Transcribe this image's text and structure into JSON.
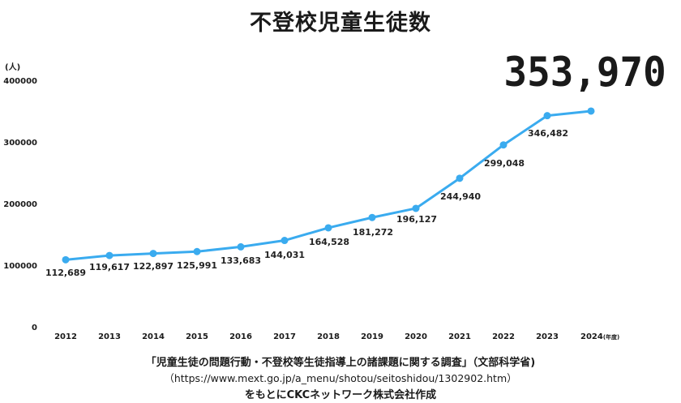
{
  "title": "不登校児童生徒数",
  "headline_value": "353,970",
  "y_unit": "(人)",
  "x_suffix": "(年度)",
  "source": {
    "line1": "「児童生徒の問題行動・不登校等生徒指導上の諸課題に関する調査」（文部科学省)",
    "line2": "（https://www.mext.go.jp/a_menu/shotou/seitoshidou/1302902.htm）",
    "line3": "をもとにCKCネットワーク株式会社作成"
  },
  "colors": {
    "line": "#3aabef"
  },
  "chart_data": {
    "type": "line",
    "title": "不登校児童生徒数",
    "xlabel": "(年度)",
    "ylabel": "(人)",
    "ylim": [
      0,
      400000
    ],
    "yticks": [
      "0",
      "100000",
      "200000",
      "300000",
      "400000"
    ],
    "categories": [
      "2012",
      "2013",
      "2014",
      "2015",
      "2016",
      "2017",
      "2018",
      "2019",
      "2020",
      "2021",
      "2022",
      "2023",
      "2024"
    ],
    "values": [
      112689,
      119617,
      122897,
      125991,
      133683,
      144031,
      164528,
      181272,
      196127,
      244940,
      299048,
      346482,
      353970
    ],
    "labels": [
      "112,689",
      "119,617",
      "122,897",
      "125,991",
      "133,683",
      "144,031",
      "164,528",
      "181,272",
      "196,127",
      "244,940",
      "299,048",
      "346,482",
      "353,970"
    ],
    "grid": false,
    "legend": "none"
  }
}
